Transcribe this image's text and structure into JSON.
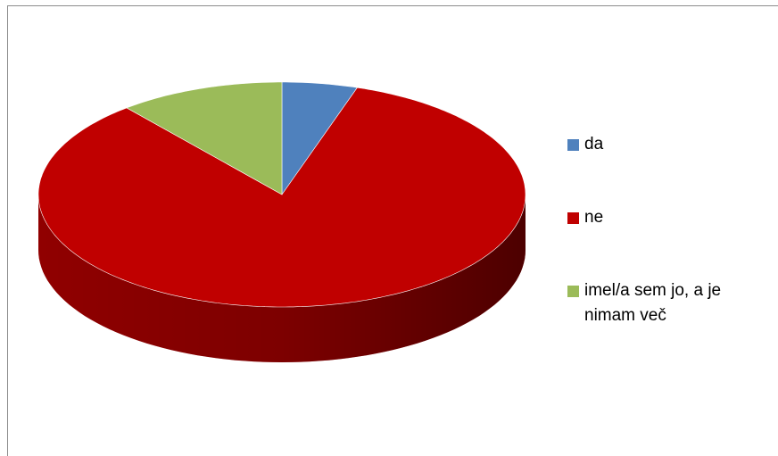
{
  "chart_data": {
    "type": "pie3d",
    "categories": [
      "da",
      "ne",
      "imel/a sem jo, a je nimam več"
    ],
    "values": [
      5,
      84,
      11
    ],
    "colors": [
      "#4f81bd",
      "#c00000",
      "#9bbb59"
    ],
    "legend": "right"
  }
}
